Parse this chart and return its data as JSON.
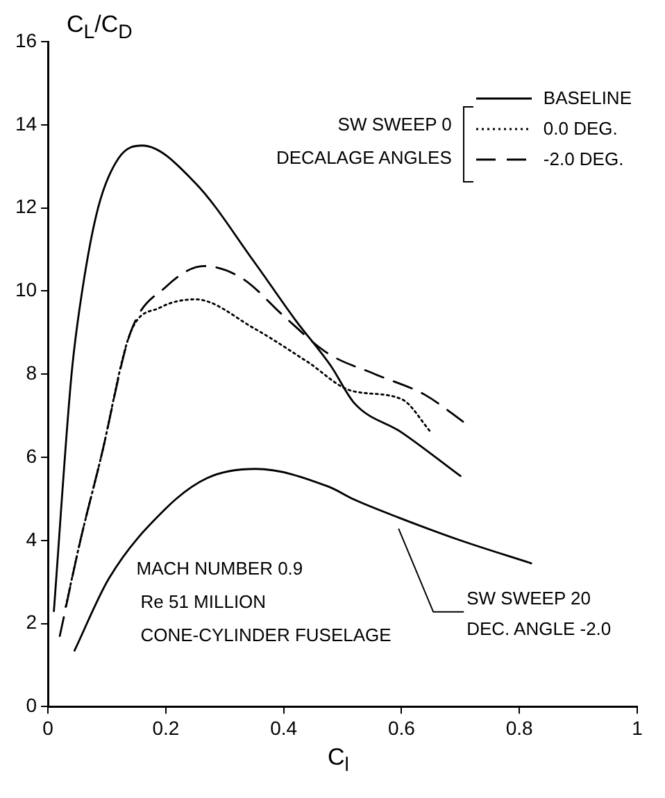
{
  "chart_data": {
    "type": "line",
    "xlabel": "C$_{l}$",
    "ylabel": "C$_{L}$/C$_{D}$",
    "legend_title": "SW SWEEP 0 DECALAGE ANGLES",
    "legend": "top right",
    "grid": false,
    "marker": "none",
    "xlim": [
      0,
      1
    ],
    "xticks": [
      0,
      0.2,
      0.4,
      0.6,
      0.8,
      1
    ],
    "ylim": [
      0,
      16
    ],
    "yticks": [
      0,
      2,
      4,
      6,
      8,
      10,
      12,
      14,
      16
    ],
    "series": [
      {
        "name": "BASELINE",
        "color": "#000000",
        "line_style": "solid",
        "x": [
          0.01,
          0.04,
          0.058,
          0.085,
          0.12,
          0.16,
          0.25,
          0.35,
          0.42,
          0.48,
          0.52,
          0.6,
          0.7
        ],
        "values": [
          2.3,
          8,
          10,
          12,
          13.2,
          13.5,
          12.6,
          10.7,
          9.3,
          8.2,
          7.3,
          6.6,
          5.55
        ]
      },
      {
        "name": "0.0 DEG.",
        "color": "#000000",
        "line_style": "dotted",
        "x": [
          0.03,
          0.055,
          0.09,
          0.14,
          0.19,
          0.25,
          0.35,
          0.44,
          0.515,
          0.6,
          0.65
        ],
        "values": [
          2.4,
          4,
          6,
          9,
          9.6,
          9.8,
          9.1,
          8.3,
          7.6,
          7.4,
          6.6
        ]
      },
      {
        "name": "-2.0 DEG.",
        "color": "#000000",
        "line_style": "dashed",
        "x": [
          0.02,
          0.055,
          0.09,
          0.14,
          0.2,
          0.265,
          0.33,
          0.4,
          0.475,
          0.555,
          0.64,
          0.71
        ],
        "values": [
          1.7,
          4,
          6,
          9,
          10.1,
          10.6,
          10.3,
          9.4,
          8.5,
          8,
          7.5,
          6.8
        ]
      },
      {
        "name": "SW SWEEP 20 DEC. ANGLE -2.0",
        "color": "#000000",
        "line_style": "solid",
        "x": [
          0.045,
          0.104,
          0.2,
          0.27,
          0.353,
          0.475,
          0.52,
          0.595,
          0.7,
          0.82
        ],
        "values": [
          1.35,
          3.1,
          4.77,
          5.5,
          5.72,
          5.3,
          4.98,
          4.55,
          4,
          3.45
        ]
      }
    ],
    "annotations": [
      "MACH NUMBER 0.9",
      "Re 51 MILLION",
      "CONE-CYLINDER FUSELAGE"
    ]
  }
}
